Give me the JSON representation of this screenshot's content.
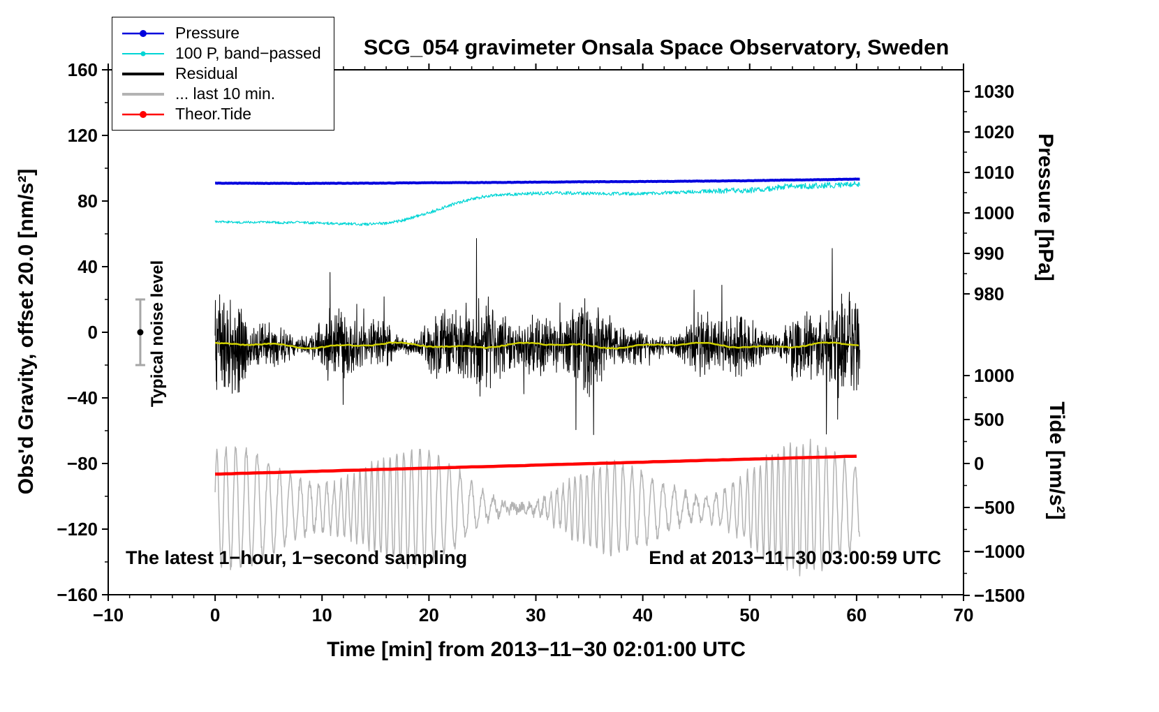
{
  "chart_data": {
    "type": "line",
    "title": "SCG_054 gravimeter Onsala Space Observatory, Sweden",
    "xlabel": "Time [min] from 2013−11−30 02:01:00 UTC",
    "ylabel_left": "Obs'd Gravity, offset 20.0 [nm/s²]",
    "ylabel_pressure": "Pressure [hPa]",
    "ylabel_tide": "Tide [nm/s²]",
    "legend_position": "top-left",
    "grid": false,
    "seed": 20131130,
    "annotations": {
      "sampling": "The latest 1−hour, 1−second sampling",
      "end_time": "End at 2013−11−30 03:00:59 UTC",
      "noise_level": "Typical noise level"
    },
    "x_axis": {
      "min": -10,
      "max": 70,
      "minor_step": 2,
      "major_ticks": [
        -10,
        0,
        10,
        20,
        30,
        40,
        50,
        60,
        70
      ],
      "tick_labels": [
        "−10",
        "0",
        "10",
        "20",
        "30",
        "40",
        "50",
        "60",
        "70"
      ]
    },
    "y_axis_gravity": {
      "min": -160,
      "max": 160,
      "minor_step": 20,
      "major_ticks": [
        -160,
        -120,
        -80,
        -40,
        0,
        40,
        80,
        120,
        160
      ],
      "tick_labels": [
        "−160",
        "−120",
        "−80",
        "−40",
        "0",
        "40",
        "80",
        "120",
        "160"
      ]
    },
    "y_axis_pressure": {
      "value_min": 980,
      "value_max": 1030,
      "gravity_min": 23.4,
      "gravity_max": 146.8,
      "minor_step": 5,
      "major_ticks": [
        980,
        990,
        1000,
        1010,
        1020,
        1030
      ],
      "tick_labels": [
        "980",
        "990",
        "1000",
        "1010",
        "1020",
        "1030"
      ]
    },
    "y_axis_tide": {
      "value_min": -1500,
      "value_max": 1000,
      "gravity_min": -160.4,
      "gravity_max": -26.4,
      "minor_step": 250,
      "major_ticks": [
        -1500,
        -1000,
        -500,
        0,
        500,
        1000
      ],
      "tick_labels": [
        "−1500",
        "−1000",
        "−500",
        "0",
        "500",
        "1000"
      ]
    },
    "noise_bar": {
      "x": -7,
      "center": 0,
      "half_height": 20
    },
    "series": [
      {
        "id": "pressure",
        "name": "Pressure",
        "color": "#0000dd",
        "axis": "pressure",
        "line_width": 4,
        "legend_lw": 2.5,
        "marker": true,
        "marker_r": 5,
        "legend": true,
        "z": 6,
        "gen": "interp",
        "step": 0.1,
        "noise_amp": 0.05,
        "points": [
          [
            0,
            1007.35
          ],
          [
            5,
            1007.3
          ],
          [
            10,
            1007.3
          ],
          [
            15,
            1007.35
          ],
          [
            20,
            1007.45
          ],
          [
            25,
            1007.5
          ],
          [
            30,
            1007.6
          ],
          [
            35,
            1007.7
          ],
          [
            40,
            1007.75
          ],
          [
            45,
            1007.85
          ],
          [
            50,
            1007.95
          ],
          [
            53,
            1008.1
          ],
          [
            55,
            1008.15
          ],
          [
            57,
            1008.2
          ],
          [
            59,
            1008.3
          ],
          [
            60.3,
            1008.35
          ]
        ]
      },
      {
        "id": "band_passed",
        "name": "100 P, band−passed",
        "color": "#00d5d5",
        "axis": "gravity",
        "line_width": 1.2,
        "legend_lw": 2,
        "marker": true,
        "marker_r": 3.5,
        "legend": true,
        "z": 5,
        "gen": "interp",
        "step": 0.05,
        "noise_amp": [
          [
            0,
            0.7
          ],
          [
            25,
            1.0
          ],
          [
            45,
            1.0
          ],
          [
            48,
            1.8
          ],
          [
            60.3,
            1.8
          ]
        ],
        "points": [
          [
            0,
            67.5
          ],
          [
            2,
            67
          ],
          [
            4,
            67.2
          ],
          [
            6,
            66.8
          ],
          [
            8,
            67
          ],
          [
            10,
            66.5
          ],
          [
            12,
            66.2
          ],
          [
            14,
            65.8
          ],
          [
            16,
            66.5
          ],
          [
            17,
            67.5
          ],
          [
            18,
            69
          ],
          [
            19,
            71
          ],
          [
            20,
            73
          ],
          [
            21,
            75
          ],
          [
            22,
            77.5
          ],
          [
            23,
            79.5
          ],
          [
            24,
            81
          ],
          [
            25,
            82.5
          ],
          [
            26,
            83.5
          ],
          [
            27,
            84
          ],
          [
            29,
            84.5
          ],
          [
            32,
            85
          ],
          [
            36,
            84.5
          ],
          [
            40,
            84.5
          ],
          [
            44,
            85.5
          ],
          [
            46,
            86
          ],
          [
            50,
            86.5
          ],
          [
            52,
            87.5
          ],
          [
            53,
            88.5
          ],
          [
            54,
            89.5
          ],
          [
            55,
            89
          ],
          [
            57,
            89.5
          ],
          [
            59,
            90
          ],
          [
            60.3,
            90.5
          ]
        ]
      },
      {
        "id": "residual",
        "name": "Residual",
        "color": "#000000",
        "axis": "gravity",
        "line_width": 1,
        "legend_lw": 4,
        "marker": false,
        "legend": true,
        "z": 3,
        "gen": "noise_band",
        "mean": -8,
        "step": 0.025,
        "x_end": 60.3,
        "amp_base": 16,
        "amp_terms": [
          [
            7,
            0.55,
            1.0
          ],
          [
            5,
            0.21,
            2.0
          ],
          [
            4,
            1.3,
            0
          ]
        ],
        "spike_prob": 0.006,
        "spike_scale": 1.9
      },
      {
        "id": "last10",
        "name": "... last 10 min.",
        "color": "#b3b3b3",
        "axis": "gravity",
        "line_width": 1.5,
        "legend_lw": 4,
        "marker": false,
        "legend": true,
        "z": 1,
        "gen": "oscillation",
        "baseline": -107,
        "step": 0.04,
        "x_end": 60.3,
        "period_base": 0.8,
        "period_var": [
          0.25,
          0.33
        ],
        "amp_base": 20,
        "amp_terms": [
          [
            13,
            0.35,
            1.2
          ],
          [
            7,
            0.13,
            0.4
          ]
        ],
        "jitter": 3
      },
      {
        "id": "theor_tide",
        "name": "Theor.Tide",
        "color": "#ff0000",
        "axis": "tide",
        "line_width": 4.5,
        "legend_lw": 2.5,
        "marker": true,
        "marker_r": 5,
        "legend": true,
        "z": 2,
        "gen": "interp",
        "step": 0.5,
        "noise_amp": 1.2,
        "points": [
          [
            0,
            -121
          ],
          [
            15,
            -69
          ],
          [
            30,
            -19
          ],
          [
            45,
            33
          ],
          [
            60.3,
            84
          ]
        ]
      },
      {
        "id": "residual_smoothed",
        "name": "",
        "color": "#d0d000",
        "axis": "gravity",
        "line_width": 2.5,
        "legend_lw": 2.5,
        "marker": false,
        "legend": false,
        "z": 4,
        "gen": "harmonics",
        "mean": -8,
        "step": 0.2,
        "x_end": 60.3,
        "terms": [
          [
            1.1,
            0.45,
            0.5
          ],
          [
            0.7,
            1.1,
            1.5
          ]
        ],
        "jitter": 0.3
      }
    ]
  }
}
